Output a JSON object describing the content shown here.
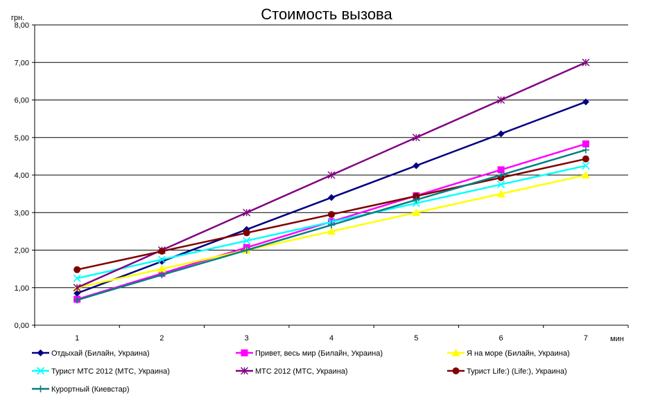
{
  "chart_data": {
    "type": "line",
    "title": "Стоимость вызова",
    "ylabel": "грн.",
    "xlabel": "мин",
    "categories": [
      "1",
      "2",
      "3",
      "4",
      "5",
      "6",
      "7"
    ],
    "ylim": [
      0,
      8
    ],
    "yticks": [
      "0,00",
      "1,00",
      "2,00",
      "3,00",
      "4,00",
      "5,00",
      "6,00",
      "7,00",
      "8,00"
    ],
    "grid": true,
    "legend_position": "bottom",
    "series": [
      {
        "name": "Отдыхай (Билайн, Украина)",
        "values": [
          0.85,
          1.7,
          2.55,
          3.4,
          4.25,
          5.1,
          5.95
        ],
        "color": "#000080",
        "marker": "diamond"
      },
      {
        "name": "Привет, весь мир (Билайн, Украина)",
        "values": [
          0.69,
          1.38,
          2.07,
          2.76,
          3.45,
          4.14,
          4.83
        ],
        "color": "#ff00ff",
        "marker": "square"
      },
      {
        "name": "Я на море (Билайн, Украина)",
        "values": [
          1.0,
          1.5,
          2.0,
          2.5,
          3.0,
          3.5,
          4.0
        ],
        "color": "#ffff00",
        "marker": "triangle"
      },
      {
        "name": "Турист МТС 2012 (МТС, Украина)",
        "values": [
          1.25,
          1.75,
          2.25,
          2.75,
          3.25,
          3.75,
          4.25
        ],
        "color": "#00ffff",
        "marker": "x"
      },
      {
        "name": "МТС 2012 (МТС, Украина)",
        "values": [
          1.0,
          2.0,
          3.0,
          4.0,
          5.0,
          6.0,
          7.0
        ],
        "color": "#800080",
        "marker": "star"
      },
      {
        "name": "Турист Life:) (Life:), Украина)",
        "values": [
          1.48,
          1.97,
          2.46,
          2.95,
          3.44,
          3.93,
          4.43
        ],
        "color": "#800000",
        "marker": "circle"
      },
      {
        "name": "Курортный (Киевстар)",
        "values": [
          0.67,
          1.34,
          2.0,
          2.67,
          3.34,
          4.0,
          4.67
        ],
        "color": "#008080",
        "marker": "plus"
      }
    ]
  }
}
